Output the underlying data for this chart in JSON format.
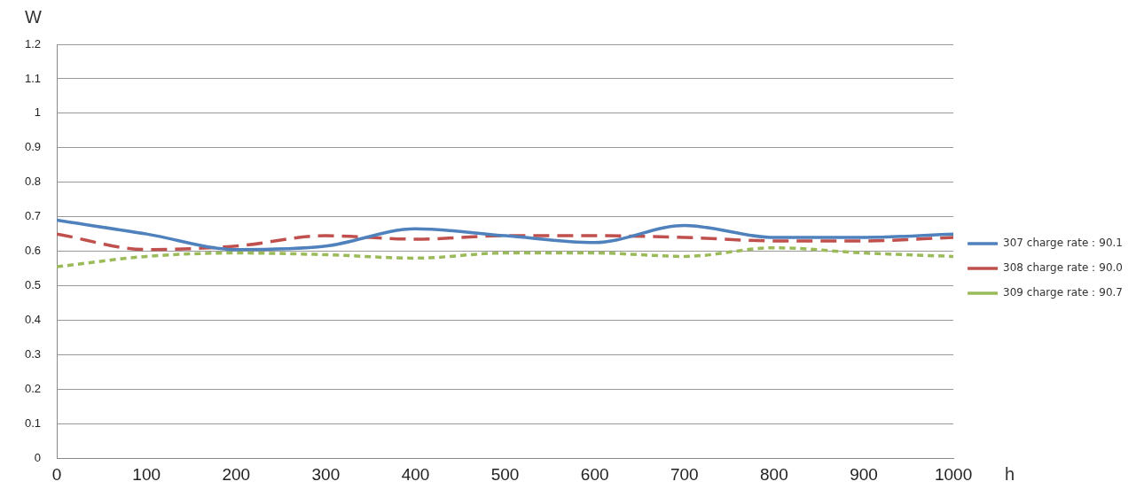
{
  "chart_data": {
    "type": "line",
    "xlabel": "h",
    "ylabel": "W",
    "x": [
      0,
      100,
      200,
      300,
      400,
      500,
      600,
      700,
      800,
      900,
      1000
    ],
    "series": [
      {
        "name": "307 charge rate：90.1",
        "color": "#4f81bd",
        "line_style": "solid",
        "values": [
          0.69,
          0.65,
          0.605,
          0.615,
          0.665,
          0.645,
          0.625,
          0.675,
          0.64,
          0.64,
          0.65
        ]
      },
      {
        "name": "308 charge rate：90.0",
        "color": "#c0504d",
        "line_style": "dashed",
        "values": [
          0.65,
          0.605,
          0.615,
          0.645,
          0.635,
          0.645,
          0.645,
          0.64,
          0.63,
          0.63,
          0.64
        ]
      },
      {
        "name": "309 charge rate：90.7",
        "color": "#9bbb59",
        "line_style": "dotted",
        "values": [
          0.555,
          0.585,
          0.595,
          0.59,
          0.58,
          0.595,
          0.595,
          0.585,
          0.61,
          0.595,
          0.585
        ]
      }
    ],
    "xlim": [
      0,
      1000
    ],
    "xticks": [
      0,
      100,
      200,
      300,
      400,
      500,
      600,
      700,
      800,
      900,
      1000
    ],
    "ylim": [
      0,
      1.2
    ],
    "yticks": [
      0,
      0.1,
      0.2,
      0.3,
      0.4,
      0.5,
      0.6,
      0.7,
      0.8,
      0.9,
      1,
      1.1,
      1.2
    ],
    "grid": "y",
    "legend": "right",
    "marker": "none"
  }
}
